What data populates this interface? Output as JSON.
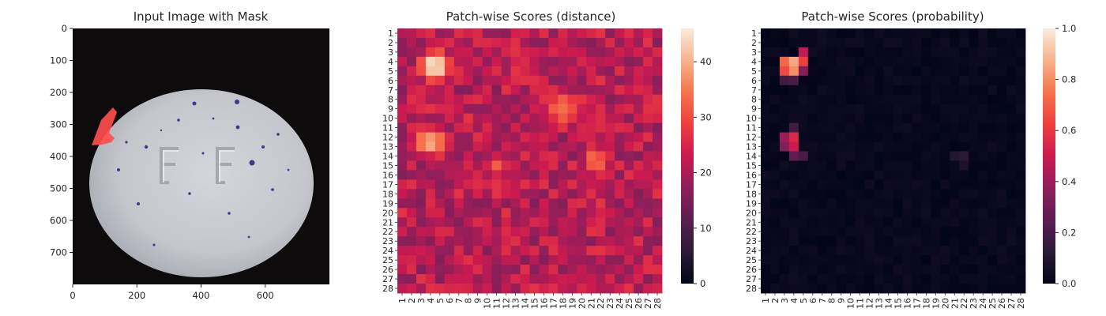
{
  "figure": {
    "panels": [
      {
        "title": "Input Image with Mask"
      },
      {
        "title": "Patch-wise Scores (distance)"
      },
      {
        "title": "Patch-wise Scores (probability)"
      }
    ]
  },
  "chart_data": [
    {
      "type": "image",
      "title": "Input Image with Mask",
      "xlim": [
        0,
        800
      ],
      "ylim": [
        800,
        0
      ],
      "x_ticks": [
        0,
        200,
        400,
        600
      ],
      "y_ticks": [
        0,
        100,
        200,
        300,
        400,
        500,
        600,
        700
      ],
      "image_content": {
        "background_color": "#0d0b0c",
        "object": "white oval tablet embossed with the letters FF, scattered blue specks",
        "tablet_color": "#c9cbd1",
        "speck_color": "#3b3c8c",
        "mask_color": "#ff4d4d",
        "mask_region": "left edge of tablet, approx x 55–140, y 250–370"
      }
    },
    {
      "type": "heatmap",
      "title": "Patch-wise Scores (distance)",
      "x_categories": [
        "1",
        "2",
        "3",
        "4",
        "5",
        "6",
        "7",
        "8",
        "9",
        "10",
        "11",
        "12",
        "13",
        "14",
        "15",
        "16",
        "17",
        "18",
        "19",
        "20",
        "21",
        "22",
        "23",
        "24",
        "25",
        "26",
        "27",
        "28"
      ],
      "y_categories": [
        "1",
        "2",
        "3",
        "4",
        "5",
        "6",
        "7",
        "8",
        "9",
        "10",
        "11",
        "12",
        "13",
        "14",
        "15",
        "16",
        "17",
        "18",
        "19",
        "20",
        "21",
        "22",
        "23",
        "24",
        "25",
        "26",
        "27",
        "28"
      ],
      "colormap": "rocket",
      "colorbar": {
        "min": 0,
        "max": 46,
        "ticks": [
          0,
          10,
          20,
          30,
          40
        ]
      },
      "hotspots": [
        {
          "rows": [
            3,
            6
          ],
          "cols": [
            3,
            6
          ],
          "peak": 46
        },
        {
          "rows": [
            11,
            14
          ],
          "cols": [
            2,
            6
          ],
          "peak": 38
        },
        {
          "rows": [
            7,
            11
          ],
          "cols": [
            16,
            20
          ],
          "peak": 33
        },
        {
          "rows": [
            13,
            16
          ],
          "cols": [
            20,
            23
          ],
          "peak": 33
        },
        {
          "rows": [
            14,
            16
          ],
          "cols": [
            10,
            12
          ],
          "peak": 31
        }
      ],
      "baseline_range": [
        16,
        27
      ]
    },
    {
      "type": "heatmap",
      "title": "Patch-wise Scores (probability)",
      "x_categories": [
        "1",
        "2",
        "3",
        "4",
        "5",
        "6",
        "7",
        "8",
        "9",
        "10",
        "11",
        "12",
        "13",
        "14",
        "15",
        "16",
        "17",
        "18",
        "19",
        "20",
        "21",
        "22",
        "23",
        "24",
        "25",
        "26",
        "27",
        "28"
      ],
      "y_categories": [
        "1",
        "2",
        "3",
        "4",
        "5",
        "6",
        "7",
        "8",
        "9",
        "10",
        "11",
        "12",
        "13",
        "14",
        "15",
        "16",
        "17",
        "18",
        "19",
        "20",
        "21",
        "22",
        "23",
        "24",
        "25",
        "26",
        "27",
        "28"
      ],
      "colormap": "rocket",
      "colorbar": {
        "min": 0.0,
        "max": 1.0,
        "ticks": [
          "0.0",
          "0.2",
          "0.4",
          "0.6",
          "0.8",
          "1.0"
        ]
      },
      "hotspots": [
        {
          "row": 4,
          "col": 3,
          "value": 0.72
        },
        {
          "row": 4,
          "col": 4,
          "value": 0.85
        },
        {
          "row": 4,
          "col": 5,
          "value": 0.62
        },
        {
          "row": 3,
          "col": 5,
          "value": 0.48
        },
        {
          "row": 5,
          "col": 3,
          "value": 0.65
        },
        {
          "row": 5,
          "col": 4,
          "value": 0.8
        },
        {
          "row": 5,
          "col": 5,
          "value": 0.35
        },
        {
          "row": 6,
          "col": 3,
          "value": 0.18
        },
        {
          "row": 6,
          "col": 4,
          "value": 0.2
        },
        {
          "row": 12,
          "col": 3,
          "value": 0.4
        },
        {
          "row": 12,
          "col": 4,
          "value": 0.55
        },
        {
          "row": 13,
          "col": 3,
          "value": 0.35
        },
        {
          "row": 13,
          "col": 4,
          "value": 0.5
        },
        {
          "row": 14,
          "col": 4,
          "value": 0.25
        },
        {
          "row": 14,
          "col": 5,
          "value": 0.2
        },
        {
          "row": 11,
          "col": 4,
          "value": 0.18
        },
        {
          "row": 14,
          "col": 21,
          "value": 0.1
        },
        {
          "row": 14,
          "col": 22,
          "value": 0.12
        },
        {
          "row": 15,
          "col": 22,
          "value": 0.08
        }
      ]
    }
  ]
}
